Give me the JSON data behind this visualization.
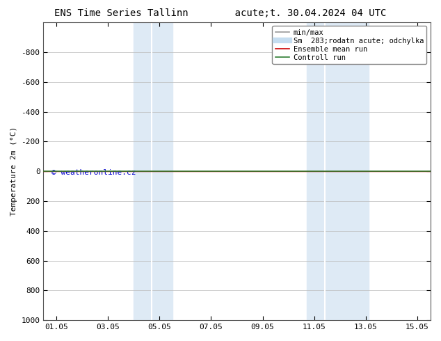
{
  "title": "ENS Time Series Tallinn        acute;t. 30.04.2024 04 UTC",
  "ylabel": "Temperature 2m (°C)",
  "watermark": "© weatheronline.cz",
  "ylim_bottom": 1000,
  "ylim_top": -1000,
  "yticks": [
    -800,
    -600,
    -400,
    -200,
    0,
    200,
    400,
    600,
    800,
    1000
  ],
  "xlim_min": 0.5,
  "xlim_max": 15.5,
  "xtick_labels": [
    "01.05",
    "03.05",
    "05.05",
    "07.05",
    "09.05",
    "11.05",
    "13.05",
    "15.05"
  ],
  "xtick_positions": [
    1,
    3,
    5,
    7,
    9,
    11,
    13,
    15
  ],
  "shade_regions": [
    {
      "xmin": 4.0,
      "xmax": 4.7,
      "color": "#deeaf5"
    },
    {
      "xmin": 4.7,
      "xmax": 5.5,
      "color": "#deeaf5"
    },
    {
      "xmin": 10.7,
      "xmax": 11.3,
      "color": "#deeaf5"
    },
    {
      "xmin": 11.3,
      "xmax": 13.1,
      "color": "#deeaf5"
    }
  ],
  "control_run_y": 0,
  "control_run_color": "#2e7d32",
  "ensemble_mean_y": 0,
  "ensemble_mean_color": "#cc0000",
  "legend_entries": [
    {
      "label": "min/max",
      "color": "#999999",
      "lw": 1.2
    },
    {
      "label": "Sm  283;rodatn acute; odchylka",
      "color": "#c5ddf0",
      "lw": 6
    },
    {
      "label": "Ensemble mean run",
      "color": "#cc0000",
      "lw": 1.2
    },
    {
      "label": "Controll run",
      "color": "#2e7d32",
      "lw": 1.2
    }
  ],
  "background_color": "#ffffff",
  "grid_color": "#bbbbbb",
  "font_size_title": 10,
  "font_size_axis": 8,
  "font_size_ticks": 8,
  "font_size_legend": 7.5,
  "font_size_watermark": 8
}
